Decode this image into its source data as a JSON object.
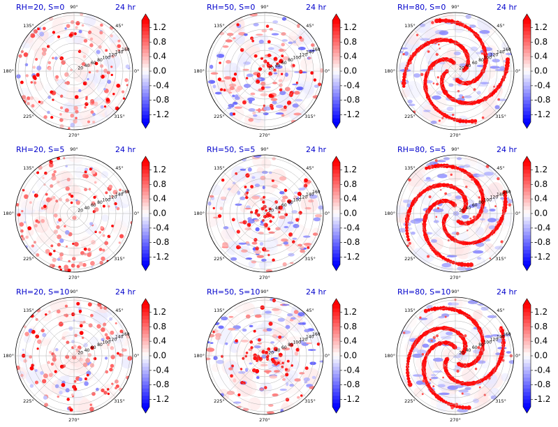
{
  "colors": {
    "title": "#0000cc",
    "positive": "#ff0000",
    "negative": "#0000ff",
    "neutral": "#ffffff",
    "grid": "#b0b0b0",
    "frame": "#000000"
  },
  "chart_data": [
    {
      "type": "heatmap",
      "projection": "polar",
      "title": "RH=20, S=0",
      "time_label": "24 hr",
      "pattern": "scattered",
      "theta_ticks": [
        "0°",
        "45°",
        "90°",
        "135°",
        "180°",
        "225°",
        "270°",
        "315°"
      ],
      "r_ticks": [
        "20",
        "40",
        "60",
        "80",
        "100",
        "120",
        "140",
        "160"
      ],
      "colorbar": {
        "ticks": [
          "1.2",
          "0.8",
          "0.4",
          "0.0",
          "-0.4",
          "-0.8",
          "-1.2"
        ],
        "range": [
          -1.4,
          1.4
        ],
        "colormap": "bwr",
        "extend": "both"
      }
    },
    {
      "type": "heatmap",
      "projection": "polar",
      "title": "RH=50, S=0",
      "time_label": "24 hr",
      "pattern": "clustered",
      "theta_ticks": [
        "0°",
        "45°",
        "90°",
        "135°",
        "180°",
        "225°",
        "270°",
        "315°"
      ],
      "r_ticks": [
        "20",
        "40",
        "60",
        "80",
        "100",
        "120",
        "140",
        "160"
      ],
      "colorbar": {
        "ticks": [
          "1.2",
          "0.8",
          "0.4",
          "0.0",
          "-0.4",
          "-0.8",
          "-1.2"
        ],
        "range": [
          -1.4,
          1.4
        ],
        "colormap": "bwr",
        "extend": "both"
      }
    },
    {
      "type": "heatmap",
      "projection": "polar",
      "title": "RH=80, S=0",
      "time_label": "24 hr",
      "pattern": "spiral",
      "theta_ticks": [
        "0°",
        "45°",
        "90°",
        "135°",
        "180°",
        "225°",
        "270°",
        "315°"
      ],
      "r_ticks": [
        "20",
        "40",
        "60",
        "80",
        "100",
        "120",
        "140",
        "160"
      ],
      "colorbar": {
        "ticks": [
          "1.2",
          "0.8",
          "0.4",
          "0.0",
          "-0.4",
          "-0.8",
          "-1.2"
        ],
        "range": [
          -1.4,
          1.4
        ],
        "colormap": "bwr",
        "extend": "both"
      }
    },
    {
      "type": "heatmap",
      "projection": "polar",
      "title": "RH=20, S=5",
      "time_label": "24 hr",
      "pattern": "scattered",
      "theta_ticks": [
        "0°",
        "45°",
        "90°",
        "135°",
        "180°",
        "225°",
        "270°",
        "315°"
      ],
      "r_ticks": [
        "20",
        "40",
        "60",
        "80",
        "100",
        "120",
        "140",
        "160"
      ],
      "colorbar": {
        "ticks": [
          "1.2",
          "0.8",
          "0.4",
          "0.0",
          "-0.4",
          "-0.8",
          "-1.2"
        ],
        "range": [
          -1.4,
          1.4
        ],
        "colormap": "bwr",
        "extend": "both"
      }
    },
    {
      "type": "heatmap",
      "projection": "polar",
      "title": "RH=50, S=5",
      "time_label": "24 hr",
      "pattern": "clustered",
      "theta_ticks": [
        "0°",
        "45°",
        "90°",
        "135°",
        "180°",
        "225°",
        "270°",
        "315°"
      ],
      "r_ticks": [
        "20",
        "40",
        "60",
        "80",
        "100",
        "120",
        "140",
        "160"
      ],
      "colorbar": {
        "ticks": [
          "1.2",
          "0.8",
          "0.4",
          "0.0",
          "-0.4",
          "-0.8",
          "-1.2"
        ],
        "range": [
          -1.4,
          1.4
        ],
        "colormap": "bwr",
        "extend": "both"
      }
    },
    {
      "type": "heatmap",
      "projection": "polar",
      "title": "RH=80, S=5",
      "time_label": "24 hr",
      "pattern": "spiral",
      "theta_ticks": [
        "0°",
        "45°",
        "90°",
        "135°",
        "180°",
        "225°",
        "270°",
        "315°"
      ],
      "r_ticks": [
        "20",
        "40",
        "60",
        "80",
        "100",
        "120",
        "140",
        "160"
      ],
      "colorbar": {
        "ticks": [
          "1.2",
          "0.8",
          "0.4",
          "0.0",
          "-0.4",
          "-0.8",
          "-1.2"
        ],
        "range": [
          -1.4,
          1.4
        ],
        "colormap": "bwr",
        "extend": "both"
      }
    },
    {
      "type": "heatmap",
      "projection": "polar",
      "title": "RH=20, S=10",
      "time_label": "24 hr",
      "pattern": "scattered",
      "theta_ticks": [
        "0°",
        "45°",
        "90°",
        "135°",
        "180°",
        "225°",
        "270°",
        "315°"
      ],
      "r_ticks": [
        "20",
        "40",
        "60",
        "80",
        "100",
        "120",
        "140",
        "160"
      ],
      "colorbar": {
        "ticks": [
          "1.2",
          "0.8",
          "0.4",
          "0.0",
          "-0.4",
          "-0.8",
          "-1.2"
        ],
        "range": [
          -1.4,
          1.4
        ],
        "colormap": "bwr",
        "extend": "both"
      }
    },
    {
      "type": "heatmap",
      "projection": "polar",
      "title": "RH=50, S=10",
      "time_label": "24 hr",
      "pattern": "clustered",
      "theta_ticks": [
        "0°",
        "45°",
        "90°",
        "135°",
        "180°",
        "225°",
        "270°",
        "315°"
      ],
      "r_ticks": [
        "20",
        "40",
        "60",
        "80",
        "100",
        "120",
        "140",
        "160"
      ],
      "colorbar": {
        "ticks": [
          "1.2",
          "0.8",
          "0.4",
          "0.0",
          "-0.4",
          "-0.8",
          "-1.2"
        ],
        "range": [
          -1.4,
          1.4
        ],
        "colormap": "bwr",
        "extend": "both"
      }
    },
    {
      "type": "heatmap",
      "projection": "polar",
      "title": "RH=80, S=10",
      "time_label": "24 hr",
      "pattern": "spiral",
      "theta_ticks": [
        "0°",
        "45°",
        "90°",
        "135°",
        "180°",
        "225°",
        "270°",
        "315°"
      ],
      "r_ticks": [
        "20",
        "40",
        "60",
        "80",
        "100",
        "120",
        "140",
        "160"
      ],
      "colorbar": {
        "ticks": [
          "1.2",
          "0.8",
          "0.4",
          "0.0",
          "-0.4",
          "-0.8",
          "-1.2"
        ],
        "range": [
          -1.4,
          1.4
        ],
        "colormap": "bwr",
        "extend": "both"
      }
    }
  ]
}
